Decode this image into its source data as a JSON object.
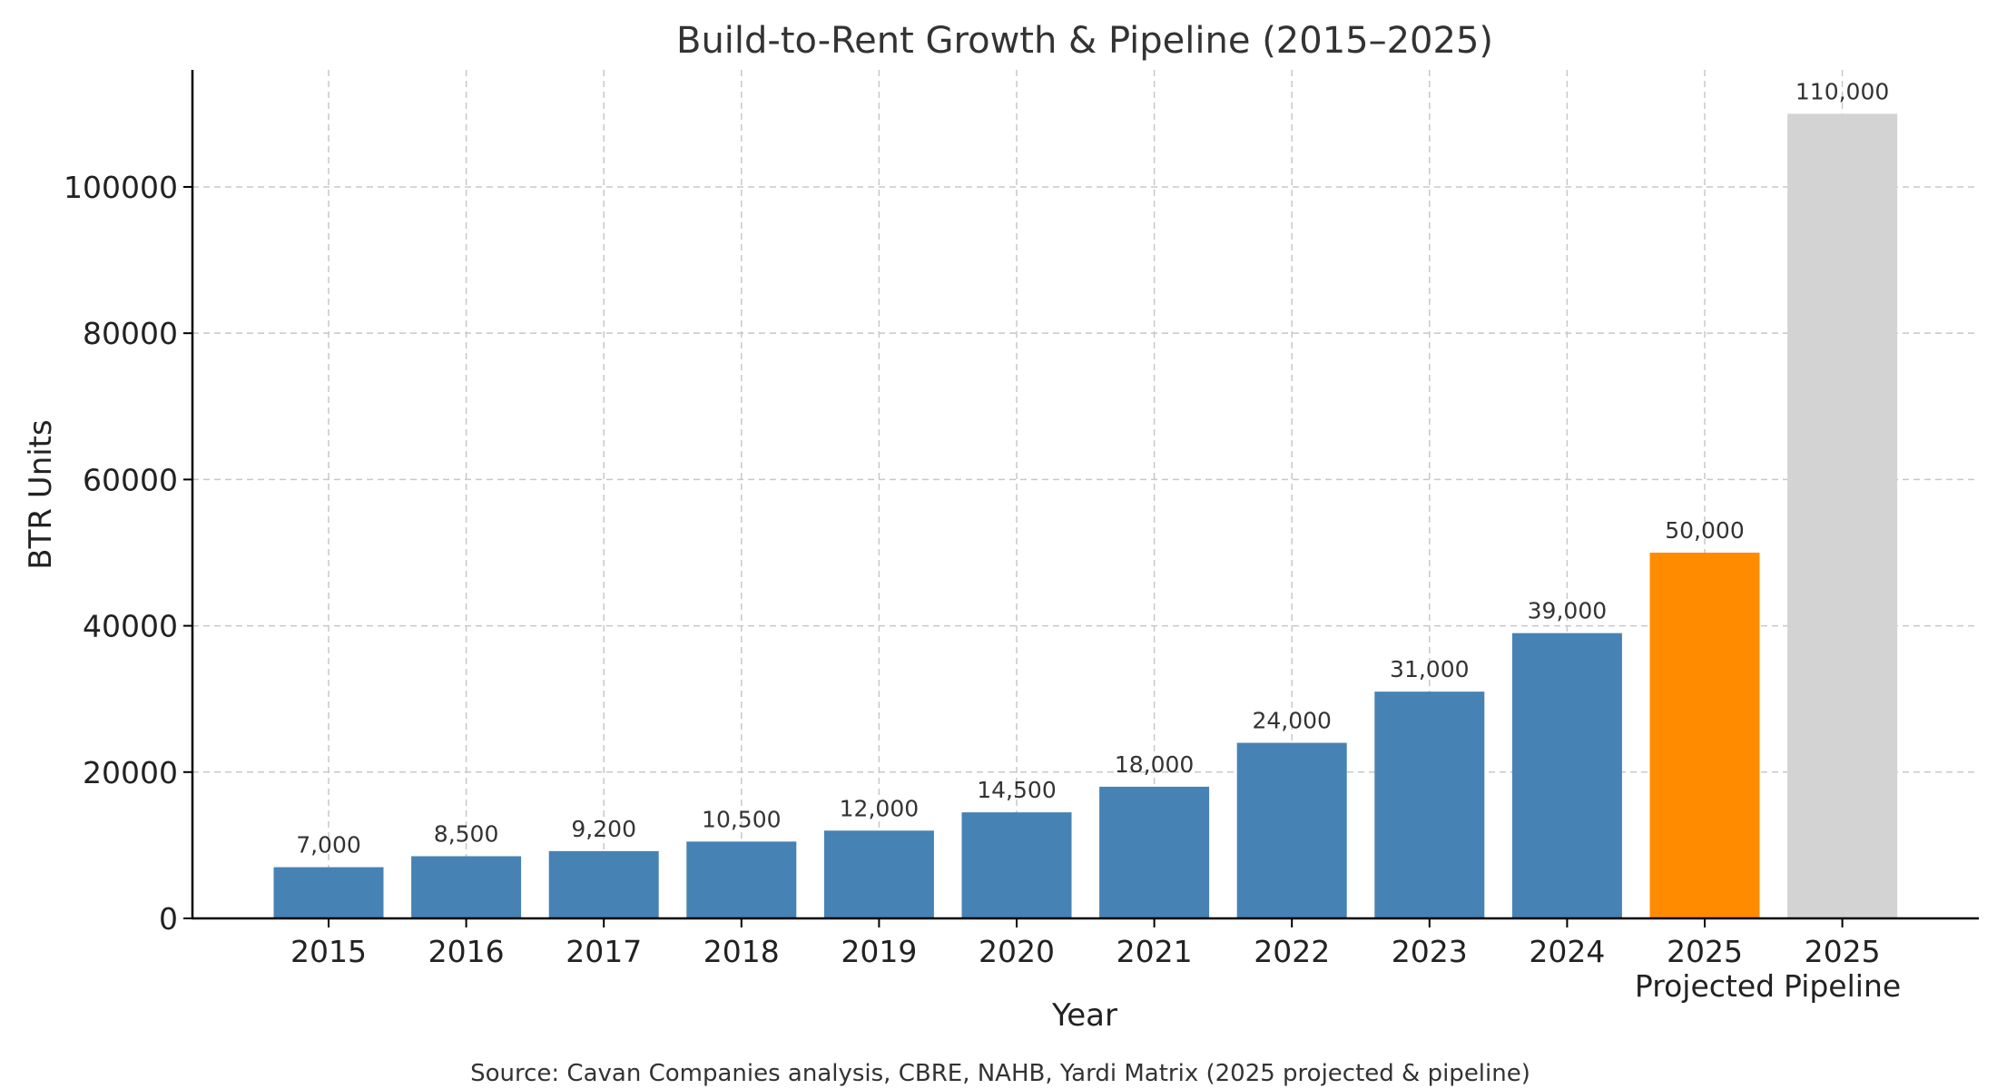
{
  "chart_data": {
    "type": "bar",
    "title": "Build-to-Rent Growth & Pipeline (2015–2025)",
    "xlabel": "Year",
    "ylabel": "BTR Units",
    "source": "Source: Cavan Companies analysis, CBRE, NAHB, Yardi Matrix (2025 projected & pipeline)",
    "ylim": [
      0,
      116000
    ],
    "yticks": [
      0,
      20000,
      40000,
      60000,
      80000,
      100000
    ],
    "grid": true,
    "categories": [
      "2015",
      "2016",
      "2017",
      "2018",
      "2019",
      "2020",
      "2021",
      "2022",
      "2023",
      "2024",
      "2025",
      "2025"
    ],
    "sublabels": [
      "",
      "",
      "",
      "",
      "",
      "",
      "",
      "",
      "",
      "",
      "Projected",
      "Pipeline"
    ],
    "values": [
      7000,
      8500,
      9200,
      10500,
      12000,
      14500,
      18000,
      24000,
      31000,
      39000,
      50000,
      110000
    ],
    "value_labels": [
      "7,000",
      "8,500",
      "9,200",
      "10,500",
      "12,000",
      "14,500",
      "18,000",
      "24,000",
      "31,000",
      "39,000",
      "50,000",
      "110,000"
    ],
    "colors": [
      "#4682b4",
      "#4682b4",
      "#4682b4",
      "#4682b4",
      "#4682b4",
      "#4682b4",
      "#4682b4",
      "#4682b4",
      "#4682b4",
      "#4682b4",
      "#ff8c00",
      "#d3d3d3"
    ]
  }
}
